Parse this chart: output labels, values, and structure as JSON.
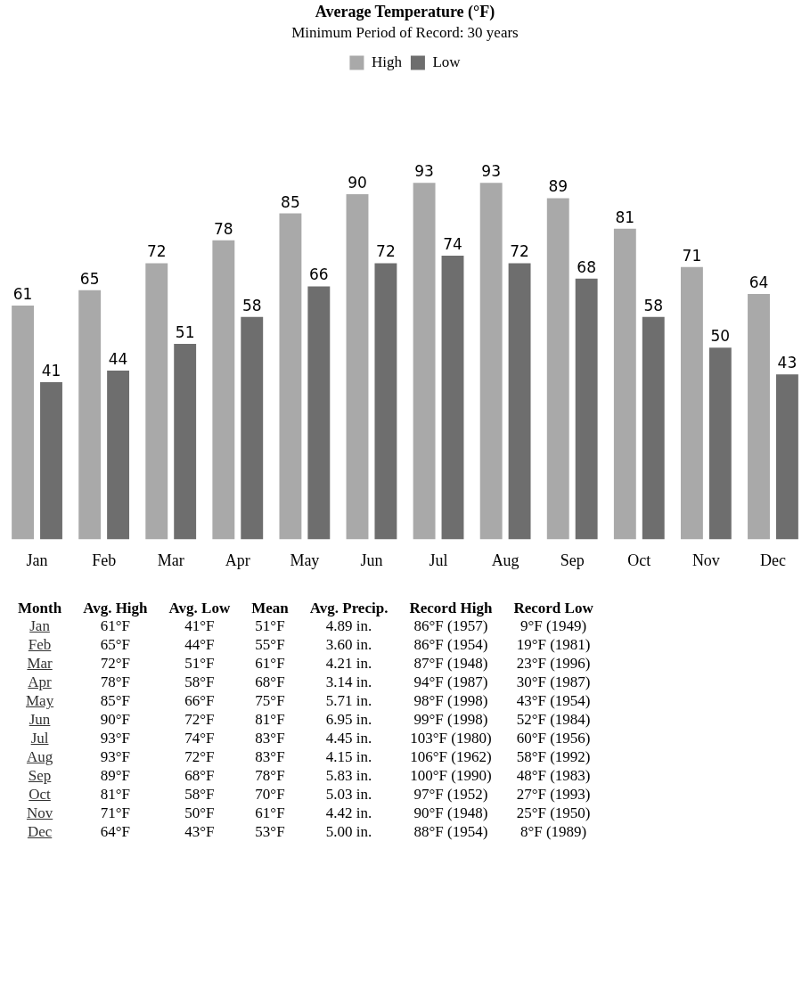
{
  "chart_data": [
    {
      "type": "bar",
      "title": "Average Temperature (°F)",
      "subtitle": "Minimum Period of Record: 30 years",
      "categories": [
        "Jan",
        "Feb",
        "Mar",
        "Apr",
        "May",
        "Jun",
        "Jul",
        "Aug",
        "Sep",
        "Oct",
        "Nov",
        "Dec"
      ],
      "series": [
        {
          "name": "High",
          "color": "#a9a9a9",
          "values": [
            61,
            65,
            72,
            78,
            85,
            90,
            93,
            93,
            89,
            81,
            71,
            64
          ]
        },
        {
          "name": "Low",
          "color": "#6e6e6e",
          "values": [
            41,
            44,
            51,
            58,
            66,
            72,
            74,
            72,
            68,
            58,
            50,
            43
          ]
        }
      ],
      "data_labels": true,
      "legend": "top",
      "grid": false
    },
    {
      "type": "other",
      "categories": [
        "Month",
        "Avg. High",
        "Avg. Low",
        "Mean",
        "Avg. Precip.",
        "Record High",
        "Record Low"
      ],
      "y_categories": [
        "Jan",
        "Feb",
        "Mar",
        "Apr",
        "May",
        "Jun",
        "Jul",
        "Aug",
        "Sep",
        "Oct",
        "Nov",
        "Dec"
      ],
      "cell_labels": [
        [
          "61°F",
          "41°F",
          "51°F",
          "4.89 in.",
          "86°F (1957)",
          "9°F (1949)"
        ],
        [
          "65°F",
          "44°F",
          "55°F",
          "3.60 in.",
          "86°F (1954)",
          "19°F (1981)"
        ],
        [
          "72°F",
          "51°F",
          "61°F",
          "4.21 in.",
          "87°F (1948)",
          "23°F (1996)"
        ],
        [
          "78°F",
          "58°F",
          "68°F",
          "3.14 in.",
          "94°F (1987)",
          "30°F (1987)"
        ],
        [
          "85°F",
          "66°F",
          "75°F",
          "5.71 in.",
          "98°F (1998)",
          "43°F (1954)"
        ],
        [
          "90°F",
          "72°F",
          "81°F",
          "6.95 in.",
          "99°F (1998)",
          "52°F (1984)"
        ],
        [
          "93°F",
          "74°F",
          "83°F",
          "4.45 in.",
          "103°F (1980)",
          "60°F (1956)"
        ],
        [
          "93°F",
          "72°F",
          "83°F",
          "4.15 in.",
          "106°F (1962)",
          "58°F (1992)"
        ],
        [
          "89°F",
          "68°F",
          "78°F",
          "5.83 in.",
          "100°F (1990)",
          "48°F (1983)"
        ],
        [
          "81°F",
          "58°F",
          "70°F",
          "5.03 in.",
          "97°F (1952)",
          "27°F (1993)"
        ],
        [
          "71°F",
          "50°F",
          "61°F",
          "4.42 in.",
          "90°F (1948)",
          "25°F (1950)"
        ],
        [
          "64°F",
          "43°F",
          "53°F",
          "5.00 in.",
          "88°F (1954)",
          "8°F (1989)"
        ]
      ]
    }
  ]
}
